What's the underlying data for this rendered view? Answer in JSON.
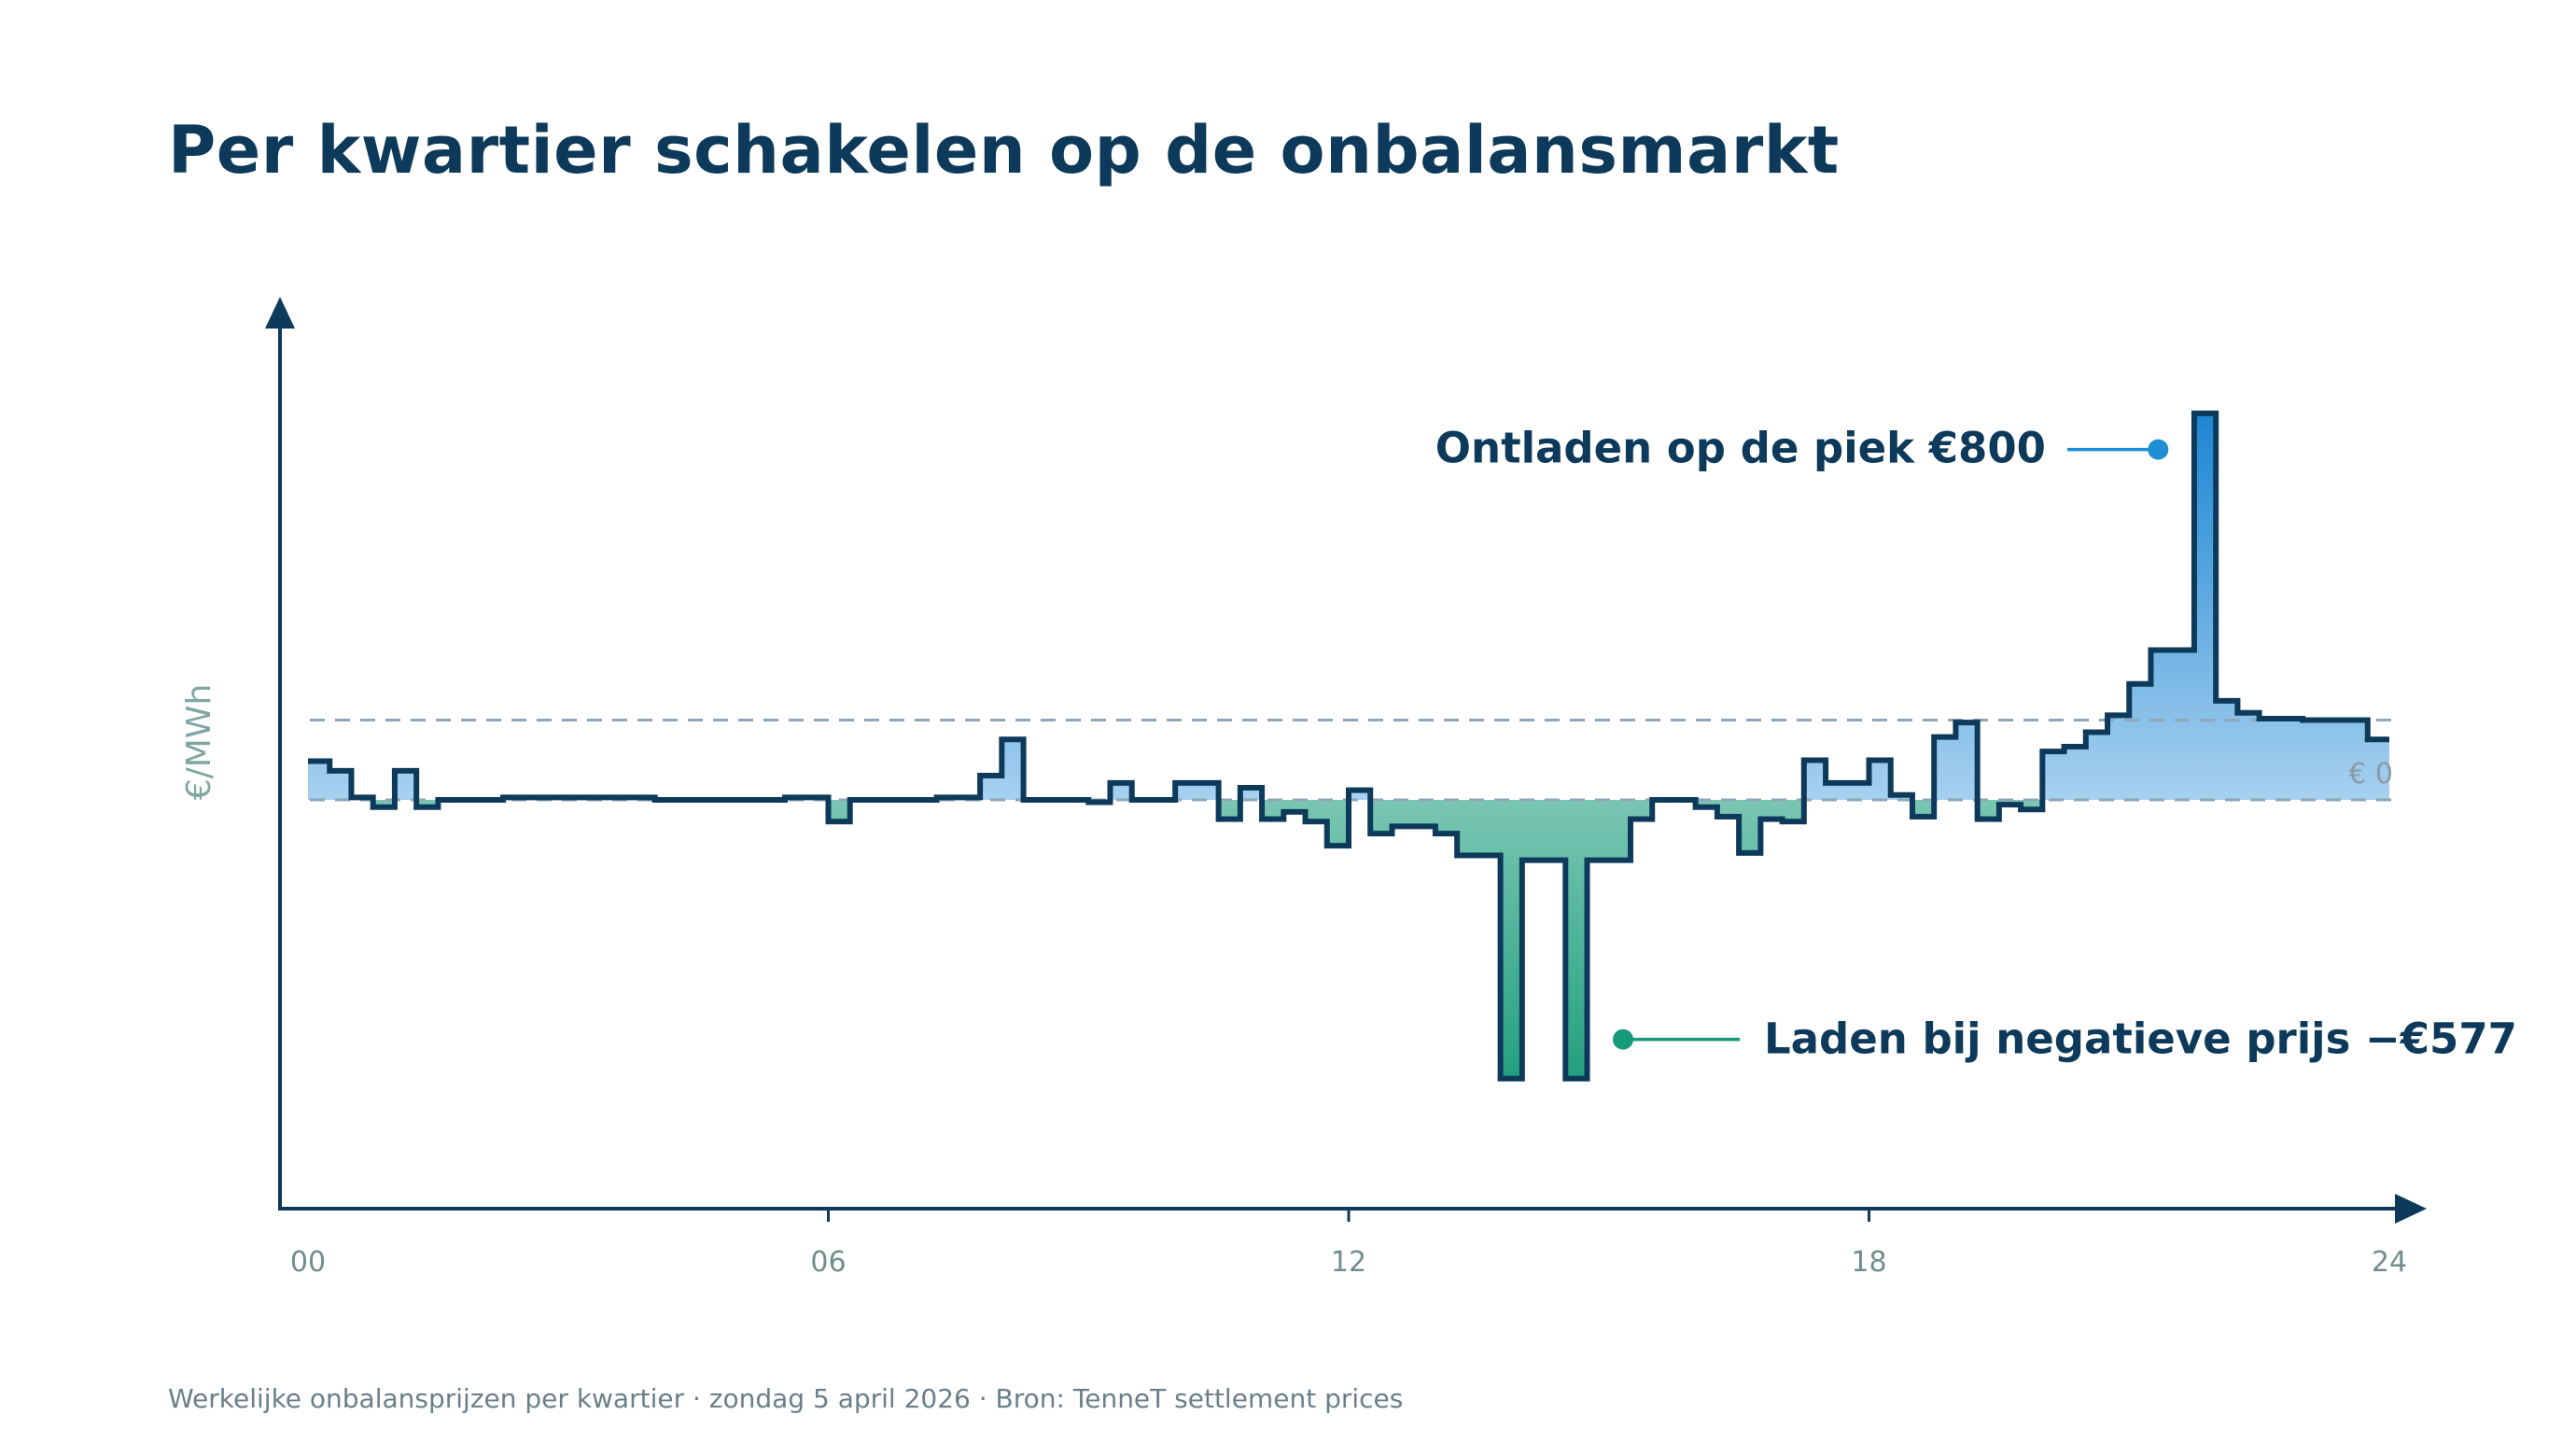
{
  "title": "Per kwartier schakelen op de onbalansmarkt",
  "footer": "Werkelijke onbalansprijzen per kwartier · zondag 5 april 2026 · Bron: TenneT settlement prices",
  "colors": {
    "line": "#0d3a5a",
    "accent_peak": "#1e8fd6",
    "accent_neg": "#159a7a",
    "reference": "#8fa6b6",
    "tick_text": "#6f8d8a"
  },
  "chart_data": {
    "type": "line",
    "step": true,
    "ylabel": "€/MWh",
    "xlabel": "",
    "x_ticks": [
      "00",
      "06",
      "12",
      "18",
      "24"
    ],
    "x_range": [
      0,
      24
    ],
    "ylim": [
      -740,
      960
    ],
    "grid": false,
    "reference_lines": [
      {
        "value": 0,
        "label": "€ 0"
      },
      {
        "value": 165,
        "label": ""
      }
    ],
    "series": [
      {
        "segments": [
          [
            0.0,
            80
          ],
          [
            0.25,
            60
          ],
          [
            0.5,
            5
          ],
          [
            0.75,
            -15
          ],
          [
            1.0,
            60
          ],
          [
            1.25,
            -15
          ],
          [
            1.5,
            0
          ],
          [
            2.0,
            0
          ],
          [
            2.25,
            5
          ],
          [
            3.0,
            5
          ],
          [
            4.0,
            0
          ],
          [
            5.0,
            0
          ],
          [
            5.5,
            5
          ],
          [
            6.0,
            -45
          ],
          [
            6.25,
            0
          ],
          [
            7.0,
            0
          ],
          [
            7.25,
            5
          ],
          [
            7.75,
            50
          ],
          [
            8.0,
            125
          ],
          [
            8.25,
            0
          ],
          [
            9.0,
            -5
          ],
          [
            9.25,
            35
          ],
          [
            9.5,
            0
          ],
          [
            10.0,
            35
          ],
          [
            10.5,
            -40
          ],
          [
            10.75,
            25
          ],
          [
            11.0,
            -40
          ],
          [
            11.25,
            -25
          ],
          [
            11.5,
            -45
          ],
          [
            11.75,
            -95
          ],
          [
            12.0,
            20
          ],
          [
            12.25,
            -70
          ],
          [
            12.5,
            -55
          ],
          [
            13.0,
            -70
          ],
          [
            13.25,
            -115
          ],
          [
            13.75,
            -577
          ],
          [
            14.0,
            -125
          ],
          [
            14.5,
            -577
          ],
          [
            14.75,
            -125
          ],
          [
            15.25,
            -40
          ],
          [
            15.5,
            0
          ],
          [
            16.0,
            -15
          ],
          [
            16.25,
            -35
          ],
          [
            16.5,
            -110
          ],
          [
            16.75,
            -40
          ],
          [
            17.0,
            -45
          ],
          [
            17.25,
            82
          ],
          [
            17.5,
            35
          ],
          [
            18.0,
            82
          ],
          [
            18.25,
            10
          ],
          [
            18.5,
            -35
          ],
          [
            18.75,
            130
          ],
          [
            19.0,
            160
          ],
          [
            19.25,
            -40
          ],
          [
            19.5,
            -10
          ],
          [
            19.75,
            -20
          ],
          [
            20.0,
            100
          ],
          [
            20.25,
            110
          ],
          [
            20.5,
            140
          ],
          [
            20.75,
            175
          ],
          [
            21.0,
            240
          ],
          [
            21.25,
            310
          ],
          [
            21.75,
            800
          ],
          [
            22.0,
            205
          ],
          [
            22.25,
            180
          ],
          [
            22.5,
            168
          ],
          [
            23.0,
            165
          ],
          [
            23.75,
            125
          ],
          [
            24.0,
            125
          ]
        ]
      }
    ],
    "annotations": [
      {
        "text": "Ontladen op de piek €800",
        "x": 21.5,
        "y": 800,
        "kind": "peak"
      },
      {
        "text": "Laden bij negatieve prijs −€577",
        "x": 14.5,
        "y": -577,
        "kind": "negative"
      }
    ]
  }
}
